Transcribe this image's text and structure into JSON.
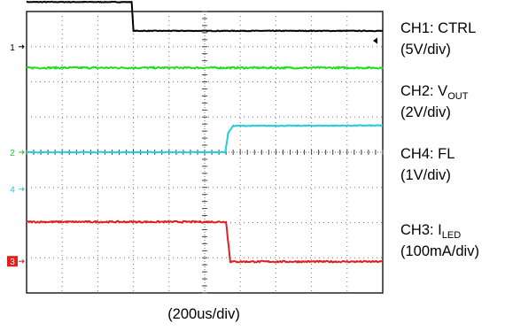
{
  "chart_data": {
    "type": "line",
    "grid": true,
    "xlabel": "(200us/div)",
    "x_divisions": 10,
    "y_divisions": 8,
    "channels": [
      {
        "id": "CH1",
        "name": "CTRL",
        "scale": "(5V/div)",
        "marker": "1",
        "color": "#000000",
        "marker_style": "plain",
        "ground_div": 3.0,
        "points": [
          [
            0,
            4.27
          ],
          [
            2.95,
            4.27
          ],
          [
            3.0,
            3.45
          ],
          [
            10,
            3.45
          ]
        ],
        "noise": 0.02
      },
      {
        "id": "CH2",
        "name": "VOUT",
        "scale": "(2V/div)",
        "marker": "",
        "color": "#22dd22",
        "points": [
          [
            0,
            2.4
          ],
          [
            10,
            2.4
          ]
        ],
        "noise": 0.05
      },
      {
        "id": "CH4",
        "name": "FL",
        "scale": "(1V/div)",
        "marker": "2",
        "color": "#22ccdd",
        "marker_style": "plain",
        "marker_color": "#22cc22",
        "ground_div": 0.0,
        "points": [
          [
            0,
            0.0
          ],
          [
            5.58,
            0.0
          ],
          [
            5.66,
            0.55
          ],
          [
            5.8,
            0.75
          ],
          [
            10,
            0.76
          ]
        ],
        "noise": 0.025
      },
      {
        "id": "CH3",
        "name": "ILED",
        "scale": "(100mA/div)",
        "marker": "3",
        "color": "#e02020",
        "marker_style": "boxed",
        "ground_div": -3.1,
        "points": [
          [
            0,
            -1.98
          ],
          [
            5.6,
            -1.98
          ],
          [
            5.72,
            -3.11
          ],
          [
            10,
            -3.11
          ]
        ],
        "noise": 0.045
      }
    ],
    "extra_markers": [
      {
        "text": "4",
        "color": "#22ccdd",
        "div": -1.05
      }
    ],
    "trigger_marker_div": 3.17
  },
  "legend": [
    {
      "prefix": "CH1: CTRL"
    },
    {
      "prefix": "(5V/div)"
    },
    {
      "prefix": "CH2: V",
      "sub": "OUT"
    },
    {
      "prefix": "(2V/div)"
    },
    {
      "prefix": "CH4: FL"
    },
    {
      "prefix": "(1V/div)"
    },
    {
      "prefix": "CH3: I",
      "sub": "LED"
    },
    {
      "prefix": "(100mA/div)"
    }
  ]
}
